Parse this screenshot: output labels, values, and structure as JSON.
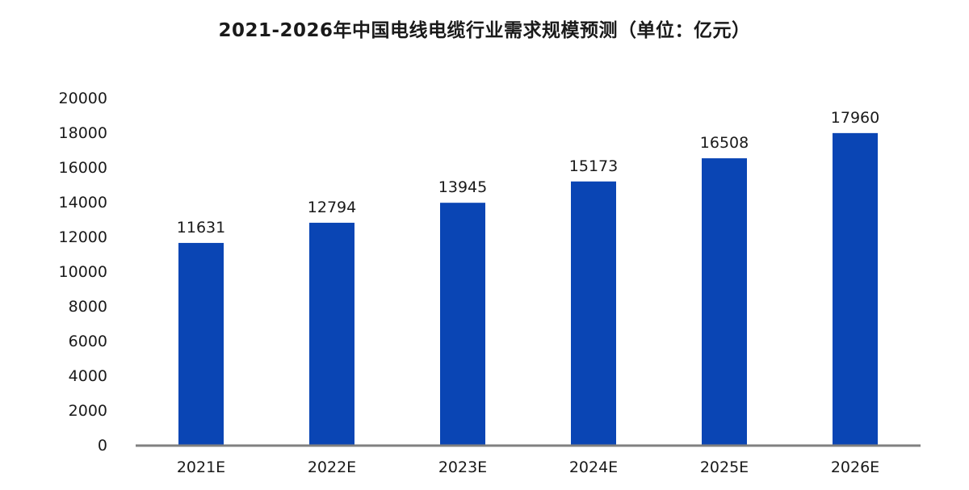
{
  "chart_data": {
    "type": "bar",
    "title": "2021-2026年中国电线电缆行业需求规模预测（单位：亿元）",
    "categories": [
      "2021E",
      "2022E",
      "2023E",
      "2024E",
      "2025E",
      "2026E"
    ],
    "values": [
      11631,
      12794,
      13945,
      15173,
      16508,
      17960
    ],
    "data_labels": [
      "11631",
      "12794",
      "13945",
      "15173",
      "16508",
      "17960"
    ],
    "ylim": [
      0,
      20000
    ],
    "yticks": [
      "0",
      "2000",
      "4000",
      "6000",
      "8000",
      "10000",
      "12000",
      "14000",
      "16000",
      "18000",
      "20000"
    ],
    "grid": false,
    "legend": "none",
    "colors": {
      "bar": "#0a45b4",
      "axis": "#808080",
      "text": "#1a1a1a"
    }
  }
}
